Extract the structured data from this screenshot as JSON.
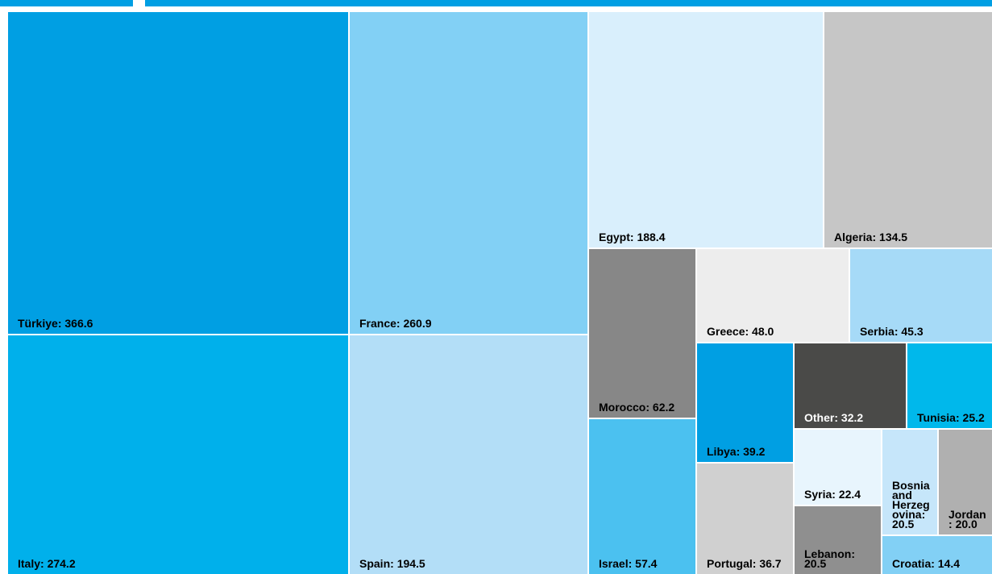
{
  "chart_data": {
    "type": "treemap",
    "categories": [
      "Türkiye",
      "Italy",
      "France",
      "Spain",
      "Egypt",
      "Algeria",
      "Morocco",
      "Israel",
      "Greece",
      "Serbia",
      "Libya",
      "Portugal",
      "Other",
      "Tunisia",
      "Syria",
      "Lebanon",
      "Bosnia and Herzegovina",
      "Jordan",
      "Croatia"
    ],
    "values": [
      366.6,
      274.2,
      260.9,
      194.5,
      188.4,
      134.5,
      62.2,
      57.4,
      48,
      45.3,
      39.2,
      36.7,
      32.2,
      25.2,
      22.4,
      20.5,
      20.5,
      20,
      14.4
    ],
    "value_labels": [
      "366.6",
      "274.2",
      "260.9",
      "194.5",
      "188.4",
      "134.5",
      "62.2",
      "57.4",
      "48.0",
      "45.3",
      "39.2",
      "36.7",
      "32.2",
      "25.2",
      "22.4",
      "20.5",
      "20.5",
      "20.0",
      "14.4"
    ],
    "colors": [
      "#009fe3",
      "#00b0eb",
      "#82d0f5",
      "#b3def7",
      "#d9effc",
      "#c6c6c6",
      "#878787",
      "#4bc1f0",
      "#ededed",
      "#a6daf7",
      "#009fe3",
      "#d0d0d0",
      "#4a4a48",
      "#00b8eb",
      "#e8f5fd",
      "#8f8f8f",
      "#c6e6fa",
      "#b0b0b0",
      "#82d0f5"
    ]
  }
}
